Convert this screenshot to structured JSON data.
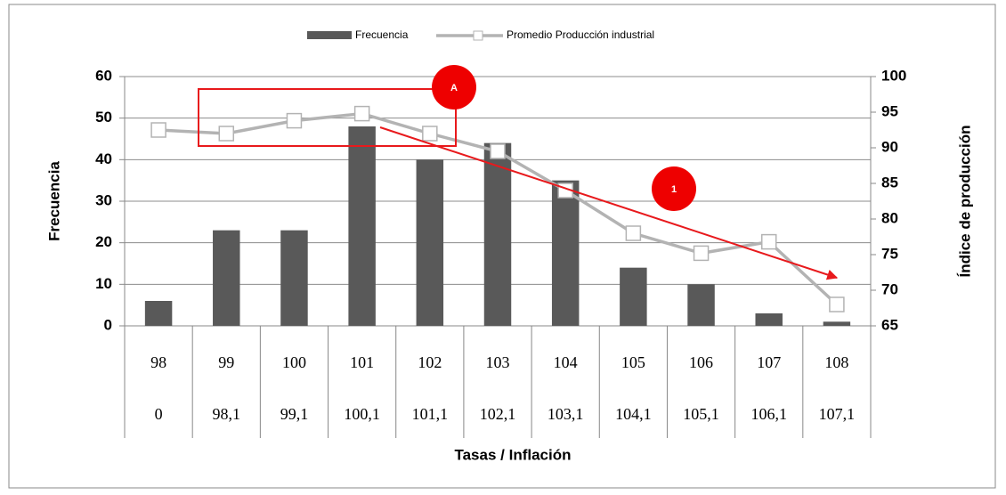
{
  "chart_data": {
    "type": "bar",
    "categories": [
      "98",
      "99",
      "100",
      "101",
      "102",
      "103",
      "104",
      "105",
      "106",
      "107",
      "108"
    ],
    "sub_categories": [
      "0",
      "98,1",
      "99,1",
      "100,1",
      "101,1",
      "102,1",
      "103,1",
      "104,1",
      "105,1",
      "106,1",
      "107,1"
    ],
    "series": [
      {
        "name": "Frecuencia",
        "type": "bar",
        "color": "#595959",
        "values": [
          6,
          23,
          23,
          48,
          40,
          44,
          35,
          14,
          10,
          3,
          1
        ]
      },
      {
        "name": "Promedio Producción industrial",
        "type": "line",
        "axis": "y2",
        "color": "#b3b3b3",
        "values": [
          92.5,
          92,
          93.8,
          94.8,
          92,
          89.5,
          84,
          78,
          75.2,
          76.8,
          68
        ]
      }
    ],
    "x_label": "Tasas / Inflación",
    "y_label": "Frecuencia",
    "y2_label": "Índice de producción",
    "ylim": [
      0,
      60
    ],
    "yticks": [
      0,
      10,
      20,
      30,
      40,
      50,
      60
    ],
    "y2lim": [
      65,
      100
    ],
    "y2ticks": [
      65,
      70,
      75,
      80,
      85,
      90,
      95,
      100
    ],
    "grid": true,
    "legend": "top",
    "annotations": [
      "A",
      "1"
    ]
  }
}
